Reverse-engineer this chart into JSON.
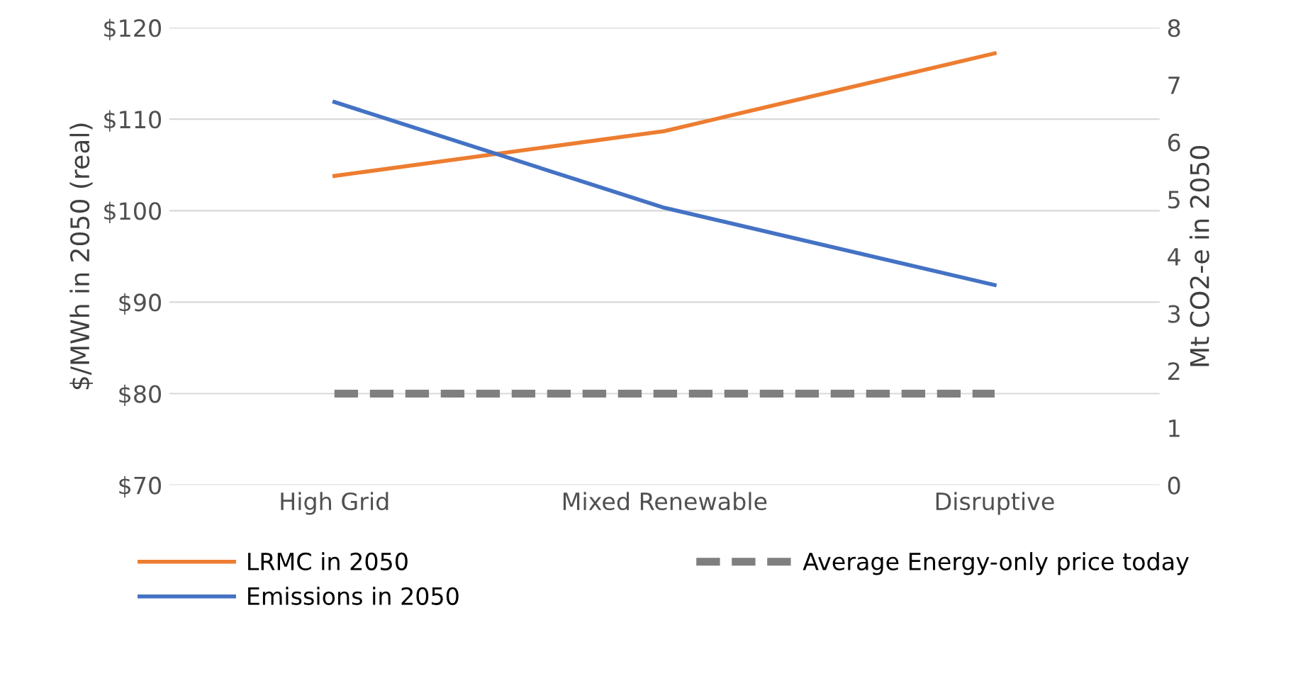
{
  "chart_data": {
    "type": "line",
    "categories": [
      "High Grid",
      "Mixed Renewable",
      "Disruptive"
    ],
    "ylabel": "$/MWh in 2050 (real)",
    "y2label": "Mt CO2-e in 2050",
    "ylim": [
      70,
      120
    ],
    "yticks": [
      {
        "value": 70,
        "label": "$70"
      },
      {
        "value": 80,
        "label": "$80"
      },
      {
        "value": 90,
        "label": "$90"
      },
      {
        "value": 100,
        "label": "$100"
      },
      {
        "value": 110,
        "label": "$110"
      },
      {
        "value": 120,
        "label": "$120"
      }
    ],
    "y2lim": [
      0,
      8
    ],
    "y2ticks": [
      0,
      1,
      2,
      3,
      4,
      5,
      6,
      7,
      8
    ],
    "grid": "y",
    "legend": "bottom",
    "marker": "none",
    "series": [
      {
        "name": "LRMC in 2050",
        "color": "#ed7d31",
        "values": [
          103.8,
          108.7,
          117.2
        ],
        "line_style": "solid"
      },
      {
        "name": "Emissions in 2050",
        "color": "#4472c4",
        "values": [
          6.7,
          4.85,
          3.5
        ],
        "axis": "y2",
        "line_style": "solid"
      },
      {
        "name": "Average Energy-only price today",
        "color": "#7f7f7f",
        "values": [
          80,
          80,
          80
        ],
        "line_style": "dashed"
      }
    ]
  }
}
